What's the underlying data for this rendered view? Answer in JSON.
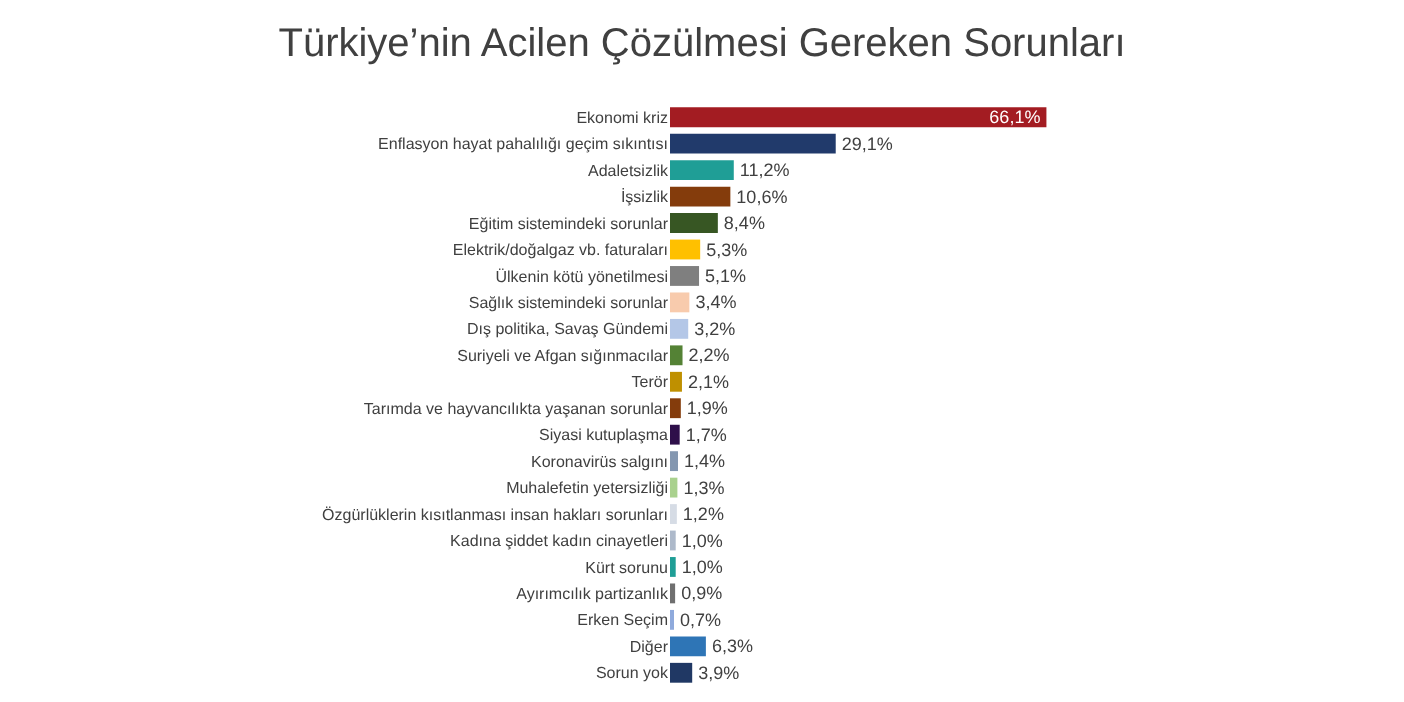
{
  "chart_data": {
    "type": "bar",
    "orientation": "horizontal",
    "title": "Türkiye’nin Acilen Çözülmesi Gereken Sorunları",
    "categories": [
      "Ekonomi kriz",
      "Enflasyon hayat pahalılığı geçim sıkıntısı",
      "Adaletsizlik",
      "İşsizlik",
      "Eğitim sistemindeki sorunlar",
      "Elektrik/doğalgaz vb. faturaları",
      "Ülkenin kötü yönetilmesi",
      "Sağlık sistemindeki sorunlar",
      "Dış politika, Savaş Gündemi",
      "Suriyeli ve Afgan sığınmacılar",
      "Terör",
      "Tarımda ve hayvancılıkta yaşanan sorunlar",
      "Siyasi kutuplaşma",
      "Koronavirüs salgını",
      "Muhalefetin yetersizliği",
      "Özgürlüklerin kısıtlanması insan hakları sorunları",
      "Kadına şiddet kadın cinayetleri",
      "Kürt sorunu",
      "Ayırımcılık partizanlık",
      "Erken Seçim",
      "Diğer",
      "Sorun yok"
    ],
    "values": [
      66.1,
      29.1,
      11.2,
      10.6,
      8.4,
      5.3,
      5.1,
      3.4,
      3.2,
      2.2,
      2.1,
      1.9,
      1.7,
      1.4,
      1.3,
      1.2,
      1.0,
      1.0,
      0.9,
      0.7,
      6.3,
      3.9
    ],
    "value_labels": [
      "66,1%",
      "29,1%",
      "11,2%",
      "10,6%",
      "8,4%",
      "5,3%",
      "5,1%",
      "3,4%",
      "3,2%",
      "2,2%",
      "2,1%",
      "1,9%",
      "1,7%",
      "1,4%",
      "1,3%",
      "1,2%",
      "1,0%",
      "1,0%",
      "0,9%",
      "0,7%",
      "6,3%",
      "3,9%"
    ],
    "colors": [
      "#a31c22",
      "#213a6b",
      "#1f9e96",
      "#843c0c",
      "#375623",
      "#ffc000",
      "#7f7f7f",
      "#f8cbad",
      "#b4c7e7",
      "#548235",
      "#bf9000",
      "#843c0c",
      "#2e0f4a",
      "#8497b0",
      "#a9d18e",
      "#d6dce5",
      "#adb9ca",
      "#1f9e96",
      "#6f6f6f",
      "#8faadc",
      "#2e75b6",
      "#203864"
    ]
  }
}
